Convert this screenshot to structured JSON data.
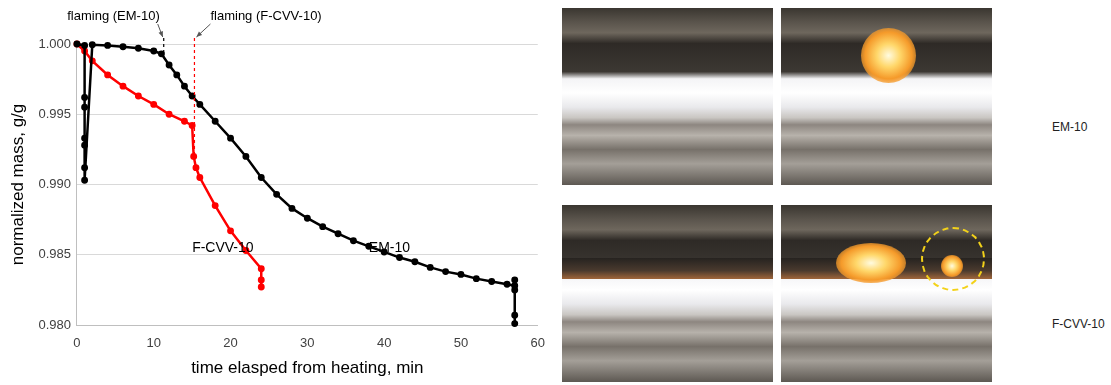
{
  "chart_data": {
    "type": "scatter",
    "x_label": "time elasped from heating, min",
    "y_label": "normalized mass, g/g",
    "xlim": [
      0,
      60
    ],
    "xticks": [
      0,
      10,
      20,
      30,
      40,
      50,
      60
    ],
    "ylim": [
      0.98,
      1.0
    ],
    "yticks": [
      {
        "value": 0.98,
        "label": "0.980"
      },
      0.985,
      {
        "value": 0.99,
        "label": "0.990"
      },
      0.995,
      {
        "value": 1.0,
        "label": "1.000"
      }
    ],
    "grid": true,
    "series": [
      {
        "name": "EM-10",
        "color": "#000000",
        "marker": "circle",
        "line_style": "solid",
        "x": [
          0,
          1,
          1,
          1,
          1,
          1,
          1,
          1,
          2,
          4,
          6,
          8,
          10,
          11,
          12,
          13,
          14,
          15,
          16,
          18,
          20,
          22,
          24,
          26,
          28,
          30,
          32,
          34,
          36,
          38,
          40,
          42,
          44,
          46,
          48,
          50,
          52,
          54,
          56,
          57,
          57,
          57,
          57,
          57
        ],
        "values": [
          1.0,
          0.9999,
          0.9962,
          0.9955,
          0.9933,
          0.9928,
          0.9912,
          0.9903,
          0.99995,
          0.9999,
          0.9998,
          0.9997,
          0.9995,
          0.9993,
          0.9985,
          0.9978,
          0.997,
          0.9963,
          0.9957,
          0.9945,
          0.9933,
          0.992,
          0.9905,
          0.9893,
          0.9883,
          0.9876,
          0.987,
          0.9865,
          0.986,
          0.9856,
          0.9852,
          0.9848,
          0.9845,
          0.9841,
          0.9838,
          0.9836,
          0.9833,
          0.9831,
          0.9829,
          0.9828,
          0.9832,
          0.9825,
          0.9807,
          0.9801
        ]
      },
      {
        "name": "F-CVV-10",
        "color": "#ff0000",
        "marker": "circle",
        "line_style": "solid",
        "x": [
          0,
          1,
          2,
          4,
          6,
          8,
          10,
          12,
          14,
          15,
          15.2,
          15.5,
          16,
          18,
          20,
          22,
          24,
          24,
          24
        ],
        "values": [
          1.0,
          0.9995,
          0.9988,
          0.9978,
          0.997,
          0.9963,
          0.9957,
          0.995,
          0.9945,
          0.9942,
          0.992,
          0.9912,
          0.9905,
          0.9885,
          0.9867,
          0.9853,
          0.984,
          0.9832,
          0.9827
        ]
      }
    ],
    "annotations": [
      {
        "text": "flaming (EM-10)",
        "x": 11.3,
        "series": "EM-10"
      },
      {
        "text": "flaming (F-CVV-10)",
        "x": 15.3,
        "series": "F-CVV-10"
      }
    ],
    "series_labels": [
      {
        "text": "F-CVV-10",
        "x": 15,
        "y": 0.9855
      },
      {
        "text": "EM-10",
        "x": 38,
        "y": 0.9855
      }
    ]
  },
  "panels": [
    {
      "label": "EM-10"
    },
    {
      "label": "F-CVV-10"
    }
  ]
}
